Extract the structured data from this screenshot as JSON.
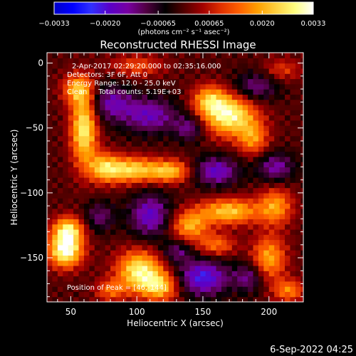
{
  "chart_data": {
    "type": "heatmap",
    "title": "Reconstructed RHESSI Image",
    "xlabel": "Heliocentric X (arcsec)",
    "ylabel": "Heliocentric Y (arcsec)",
    "xlim": [
      32,
      226
    ],
    "ylim": [
      -184,
      8
    ],
    "x_ticks": [
      {
        "value": 50,
        "label": "50"
      },
      {
        "value": 100,
        "label": "100"
      },
      {
        "value": 150,
        "label": "150"
      },
      {
        "value": 200,
        "label": "200"
      }
    ],
    "y_ticks": [
      {
        "value": 0,
        "label": "0"
      },
      {
        "value": -50,
        "label": "−50"
      },
      {
        "value": -100,
        "label": "−100"
      },
      {
        "value": -150,
        "label": "−150"
      }
    ],
    "colorbar": {
      "range": [
        -0.0033,
        0.0033
      ],
      "colors": [
        "#0000c8",
        "#0000ff",
        "#3030ff",
        "#5a00c8",
        "#7800a0",
        "#500040",
        "#000000",
        "#500000",
        "#a00000",
        "#e03000",
        "#ff6000",
        "#ffa000",
        "#ffd040",
        "#ffff80",
        "#ffffff"
      ],
      "tick_labels": [
        {
          "value": -0.0033,
          "label": "−0.0033"
        },
        {
          "value": -0.002,
          "label": "−0.0020"
        },
        {
          "value": -0.00065,
          "label": "−0.00065"
        },
        {
          "value": 0.00065,
          "label": "0.00065"
        },
        {
          "value": 0.002,
          "label": "0.0020"
        },
        {
          "value": 0.0033,
          "label": "0.0033"
        }
      ],
      "units_label": "(photons cm⁻² s⁻¹ asec⁻²)"
    },
    "annotations": {
      "time_range": "2-Apr-2017 02:29:20.000 to 02:35:16.000",
      "detectors": "Detectors: 3F 6F, Att 0",
      "energy_range": "Energy Range: 12.0 - 25.0 keV",
      "clean_counts": "Clean     Total counts: 5.19E+03",
      "peak_position": "Position of Peak = [46,-144]"
    },
    "footer_date": "6-Sep-2022 04:25",
    "sources": [
      {
        "x": 46,
        "y": -144,
        "sx": 9,
        "sy": 9,
        "amp": 1.0
      },
      {
        "x": 48,
        "y": -128,
        "sx": 8,
        "sy": 7,
        "amp": 0.75
      },
      {
        "x": 102,
        "y": -160,
        "sx": 12,
        "sy": 11,
        "amp": 0.85
      },
      {
        "x": 118,
        "y": -172,
        "sx": 10,
        "sy": 8,
        "amp": 0.65
      },
      {
        "x": 170,
        "y": -40,
        "sx": 14,
        "sy": 11,
        "amp": 0.9
      },
      {
        "x": 155,
        "y": -28,
        "sx": 9,
        "sy": 8,
        "amp": 0.55
      },
      {
        "x": 188,
        "y": -58,
        "sx": 8,
        "sy": 9,
        "amp": 0.5
      },
      {
        "x": 60,
        "y": -50,
        "sx": 7,
        "sy": 20,
        "amp": 0.85
      },
      {
        "x": 55,
        "y": -20,
        "sx": 8,
        "sy": 8,
        "amp": 0.55
      },
      {
        "x": 95,
        "y": -82,
        "sx": 14,
        "sy": 7,
        "amp": 0.75
      },
      {
        "x": 125,
        "y": -83,
        "sx": 11,
        "sy": 6,
        "amp": 0.65
      },
      {
        "x": 75,
        "y": -80,
        "sx": 8,
        "sy": 8,
        "amp": 0.55
      },
      {
        "x": 170,
        "y": -114,
        "sx": 16,
        "sy": 7,
        "amp": 0.7
      },
      {
        "x": 205,
        "y": -110,
        "sx": 9,
        "sy": 10,
        "amp": 0.55
      },
      {
        "x": 140,
        "y": -125,
        "sx": 10,
        "sy": 8,
        "amp": 0.6
      },
      {
        "x": 200,
        "y": -150,
        "sx": 9,
        "sy": 12,
        "amp": 0.6
      },
      {
        "x": 215,
        "y": -175,
        "sx": 8,
        "sy": 6,
        "amp": 0.5
      },
      {
        "x": 160,
        "y": -140,
        "sx": 10,
        "sy": 6,
        "amp": 0.45
      },
      {
        "x": 100,
        "y": -2,
        "sx": 14,
        "sy": 6,
        "amp": 0.35
      },
      {
        "x": 210,
        "y": -5,
        "sx": 10,
        "sy": 6,
        "amp": 0.3
      },
      {
        "x": 80,
        "y": -175,
        "sx": 8,
        "sy": 6,
        "amp": 0.4
      },
      {
        "x": 80,
        "y": -30,
        "sx": 12,
        "sy": 10,
        "amp": -0.45
      },
      {
        "x": 110,
        "y": -40,
        "sx": 15,
        "sy": 10,
        "amp": -0.5
      },
      {
        "x": 140,
        "y": -50,
        "sx": 8,
        "sy": 7,
        "amp": -0.4
      },
      {
        "x": 190,
        "y": -18,
        "sx": 12,
        "sy": 8,
        "amp": -0.4
      },
      {
        "x": 160,
        "y": -83,
        "sx": 12,
        "sy": 8,
        "amp": -0.55
      },
      {
        "x": 205,
        "y": -80,
        "sx": 10,
        "sy": 8,
        "amp": -0.45
      },
      {
        "x": 110,
        "y": -117,
        "sx": 11,
        "sy": 12,
        "amp": -0.55
      },
      {
        "x": 72,
        "y": -118,
        "sx": 8,
        "sy": 8,
        "amp": -0.35
      },
      {
        "x": 150,
        "y": -165,
        "sx": 14,
        "sy": 10,
        "amp": -0.65
      },
      {
        "x": 185,
        "y": -165,
        "sx": 8,
        "sy": 8,
        "amp": -0.4
      },
      {
        "x": 130,
        "y": -145,
        "sx": 8,
        "sy": 6,
        "amp": -0.35
      }
    ]
  }
}
